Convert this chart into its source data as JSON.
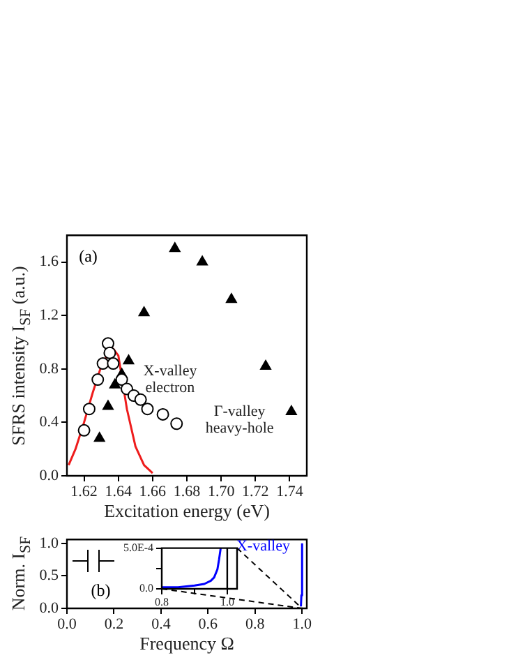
{
  "chart_data": [
    {
      "type": "scatter",
      "xlabel": "Excitation energy (eV)",
      "ylabel": "SFRS intensity I$_{SF}$ (a.u.)",
      "xlim": [
        1.61,
        1.75
      ],
      "xticks": [
        1.62,
        1.64,
        1.66,
        1.68,
        {
          "value": 1.7,
          "label": "1.70"
        },
        1.72,
        1.74
      ],
      "ylim": [
        0,
        1.8
      ],
      "yticks": [
        {
          "value": 0,
          "label": "0.0"
        },
        0.4,
        0.8,
        1.2,
        1.6
      ],
      "grid": false,
      "legend": false,
      "annotations": [
        "(a)"
      ],
      "series": [
        {
          "name": "X-valley electron",
          "color": "#000000",
          "marker": "circle",
          "x": [
            1.62,
            1.623,
            1.628,
            1.631,
            1.634,
            1.635,
            1.637,
            1.642,
            1.645,
            1.649,
            1.653,
            1.657,
            1.666,
            1.674
          ],
          "values": [
            0.34,
            0.5,
            0.72,
            0.84,
            0.99,
            0.92,
            0.84,
            0.72,
            0.65,
            0.6,
            0.57,
            0.5,
            0.46,
            0.39
          ]
        },
        {
          "name": "Γ-valley heavy-hole",
          "color": "#000000",
          "marker": "triangle",
          "x": [
            1.629,
            1.634,
            1.638,
            1.642,
            1.646,
            1.655,
            1.673,
            1.689,
            1.706,
            1.726,
            1.741
          ],
          "values": [
            0.28,
            0.52,
            0.68,
            0.76,
            0.86,
            1.22,
            1.7,
            1.6,
            1.32,
            0.82,
            0.48
          ]
        },
        {
          "type": "line",
          "color": "#ee1c1c",
          "marker": "none",
          "x": [
            1.611,
            1.615,
            1.62,
            1.625,
            1.63,
            1.635,
            1.637,
            1.64,
            1.645,
            1.65,
            1.655,
            1.66
          ],
          "values": [
            0.08,
            0.2,
            0.4,
            0.62,
            0.82,
            0.94,
            0.95,
            0.9,
            0.5,
            0.22,
            0.08,
            0.02
          ]
        }
      ]
    },
    {
      "type": "line",
      "xlabel": "Frequency Ω",
      "ylabel": "Norm. I$_{SF}$",
      "xlim": [
        0,
        1.02
      ],
      "xticks": [
        {
          "value": 0,
          "label": "0.0"
        },
        0.2,
        0.4,
        0.6,
        0.8,
        {
          "value": 1,
          "label": "1.0"
        }
      ],
      "ylim": [
        0,
        1.06
      ],
      "yticks": [
        {
          "value": 0,
          "label": "0.0"
        },
        0.5,
        {
          "value": 1,
          "label": "1.0"
        }
      ],
      "grid": false,
      "legend": false,
      "marker": "none",
      "annotations": [
        "(b)"
      ],
      "series": [
        {
          "name": "X-valley",
          "color": "#0000ff",
          "x": [
            0.995,
            0.997,
            1.0
          ],
          "values": [
            0.03,
            0.2,
            1.0
          ]
        }
      ]
    },
    {
      "type": "line",
      "xlim": [
        0.8,
        1.03
      ],
      "xticks": [
        0.8,
        {
          "value": 0.9,
          "label": null
        },
        {
          "value": 1,
          "label": "1.0"
        }
      ],
      "ylim": [
        0,
        0.0005
      ],
      "yticks": [
        {
          "value": 0,
          "label": "0.0"
        },
        {
          "value": 0.00025,
          "label": null
        },
        {
          "value": 0.0005,
          "label": "5.0E-4"
        }
      ],
      "grid": false,
      "legend": false,
      "marker": "none",
      "ref_lines": [
        {
          "axis": "x",
          "value": 1.0,
          "color": "#000000"
        }
      ],
      "series": [
        {
          "color": "#0000ff",
          "x": [
            0.8,
            0.85,
            0.9,
            0.93,
            0.95,
            0.96,
            0.97,
            0.975,
            0.98
          ],
          "values": [
            2e-05,
            2e-05,
            4e-05,
            6e-05,
            0.0001,
            0.00014,
            0.00024,
            0.00036,
            0.0005
          ]
        }
      ]
    }
  ]
}
